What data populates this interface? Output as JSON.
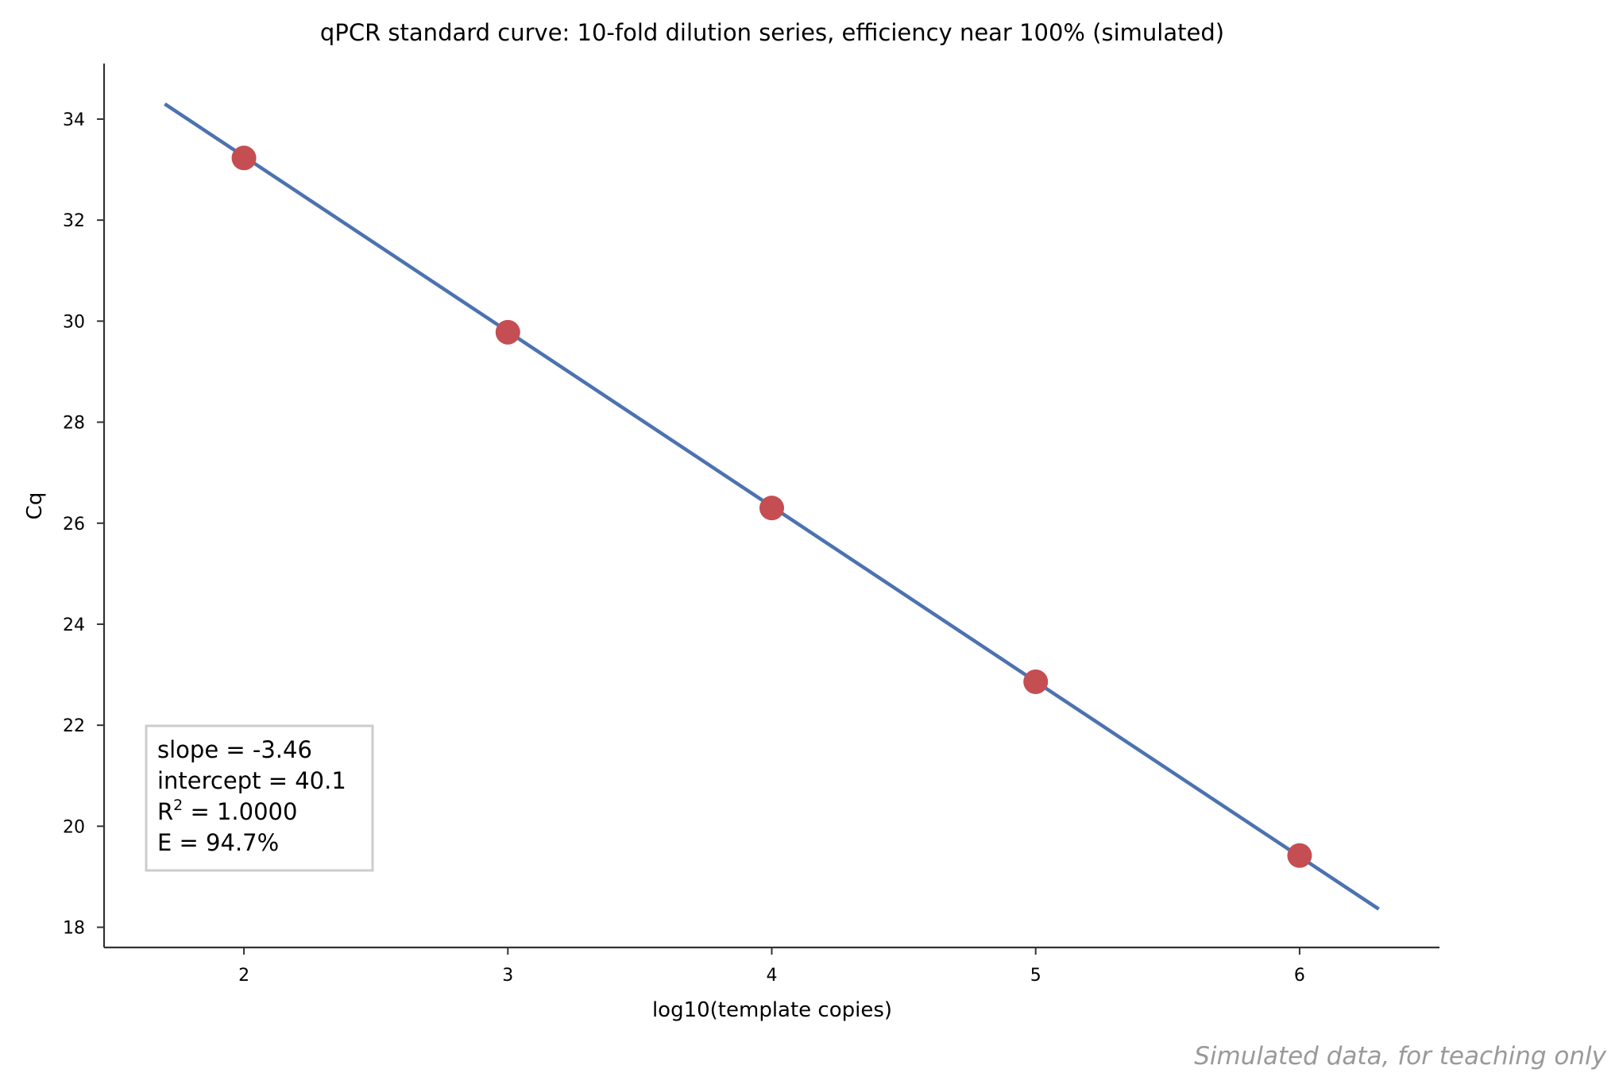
{
  "chart_data": {
    "type": "scatter",
    "title": "qPCR standard curve: 10-fold dilution series, efficiency near 100% (simulated)",
    "xlabel": "log10(template copies)",
    "ylabel": "Cq",
    "xlim": [
      1.47,
      6.53
    ],
    "ylim": [
      17.6,
      35.1
    ],
    "xticks": [
      2,
      3,
      4,
      5,
      6
    ],
    "yticks": [
      18,
      20,
      22,
      24,
      26,
      28,
      30,
      32,
      34
    ],
    "grid": false,
    "series": [
      {
        "type": "scatter",
        "x": [
          2,
          3,
          4,
          5,
          6
        ],
        "y": [
          33.23,
          29.78,
          26.3,
          22.86,
          19.42
        ],
        "color": "#c44e52"
      },
      {
        "type": "line",
        "x": [
          1.7,
          6.3
        ],
        "y": [
          34.3,
          18.36
        ],
        "color": "#4c72b0"
      }
    ],
    "annotation": {
      "lines": [
        {
          "text": "slope = -3.46"
        },
        {
          "text": "intercept = 40.1"
        },
        {
          "text": "R",
          "sup": "2",
          "rest": " = 1.0000"
        },
        {
          "text": "E = 94.7%"
        }
      ],
      "placement": "lower-left"
    },
    "watermark": "Simulated data, for teaching only"
  }
}
